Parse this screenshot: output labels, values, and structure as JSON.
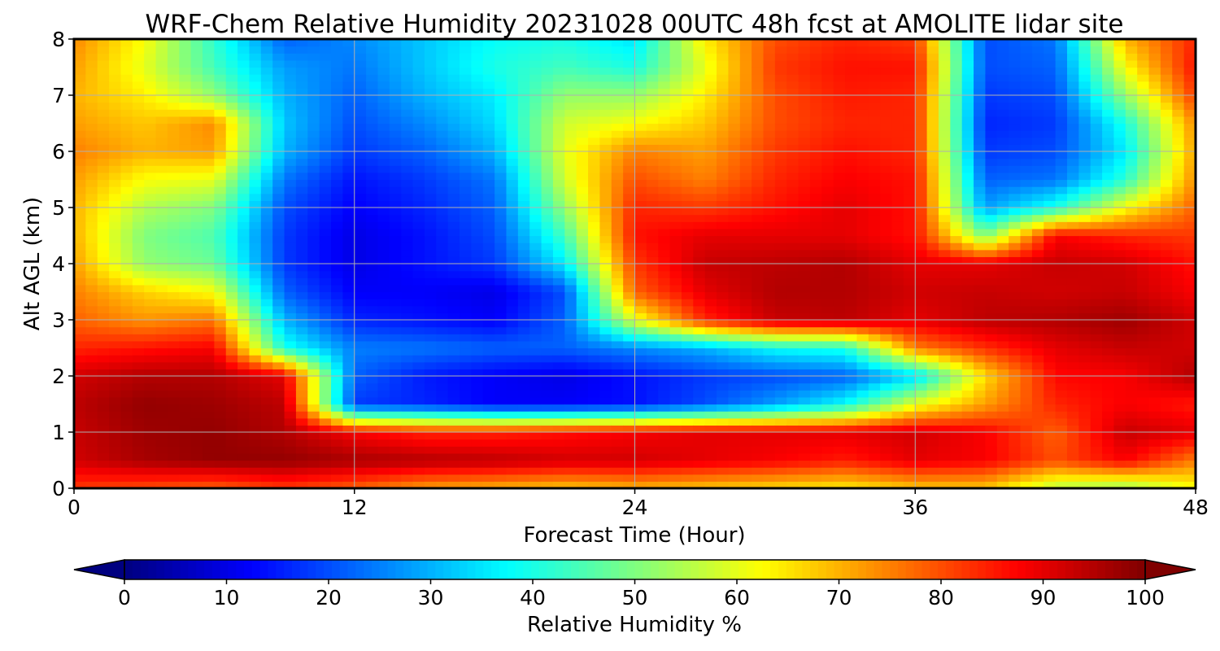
{
  "chart_data": {
    "type": "heatmap",
    "title": "WRF-Chem Relative Humidity 20231028 00UTC 48h fcst at AMOLITE lidar site",
    "xlabel": "Forecast Time (Hour)",
    "ylabel": "Alt AGL (km)",
    "xlim": [
      0,
      48
    ],
    "ylim": [
      0,
      8
    ],
    "xticks": [
      0,
      12,
      24,
      36,
      48
    ],
    "yticks": [
      0,
      1,
      2,
      3,
      4,
      5,
      6,
      7,
      8
    ],
    "grid": true,
    "colormap": "jet",
    "colorbar": {
      "label": "Relative Humidity %",
      "orientation": "horizontal",
      "location": "bottom",
      "vmin": 0,
      "vmax": 100,
      "ticks": [
        0,
        10,
        20,
        30,
        40,
        50,
        60,
        70,
        80,
        90,
        100
      ],
      "extend": "both"
    },
    "x": [
      0,
      3,
      6,
      9,
      12,
      15,
      18,
      21,
      24,
      27,
      30,
      33,
      36,
      39,
      42,
      45,
      48
    ],
    "y": [
      0,
      0.5,
      1,
      1.5,
      2,
      2.5,
      3,
      3.5,
      4,
      4.5,
      5,
      5.5,
      6,
      6.5,
      7,
      7.5,
      8
    ],
    "z": [
      [
        82,
        80,
        78,
        82,
        78,
        72,
        70,
        68,
        70,
        68,
        66,
        64,
        68,
        68,
        55,
        52,
        62
      ],
      [
        92,
        96,
        98,
        98,
        96,
        95,
        94,
        92,
        92,
        90,
        88,
        85,
        90,
        88,
        80,
        88,
        75
      ],
      [
        93,
        97,
        98,
        95,
        88,
        84,
        84,
        86,
        88,
        90,
        90,
        90,
        92,
        88,
        78,
        93,
        90
      ],
      [
        94,
        98,
        97,
        94,
        18,
        16,
        12,
        12,
        14,
        20,
        28,
        38,
        60,
        72,
        84,
        88,
        85
      ],
      [
        92,
        95,
        95,
        90,
        22,
        15,
        12,
        10,
        14,
        18,
        20,
        22,
        34,
        66,
        87,
        88,
        95
      ],
      [
        84,
        86,
        88,
        40,
        25,
        24,
        22,
        22,
        26,
        30,
        38,
        40,
        75,
        83,
        90,
        93,
        92
      ],
      [
        78,
        73,
        76,
        30,
        16,
        14,
        12,
        22,
        60,
        84,
        93,
        94,
        90,
        94,
        95,
        97,
        92
      ],
      [
        75,
        67,
        62,
        22,
        12,
        12,
        10,
        20,
        78,
        90,
        95,
        95,
        92,
        93,
        92,
        93,
        88
      ],
      [
        72,
        52,
        48,
        18,
        10,
        14,
        18,
        36,
        82,
        93,
        94,
        95,
        90,
        90,
        93,
        92,
        86
      ],
      [
        70,
        50,
        45,
        18,
        10,
        14,
        20,
        44,
        86,
        90,
        90,
        90,
        86,
        50,
        88,
        84,
        82
      ],
      [
        70,
        55,
        50,
        20,
        12,
        16,
        22,
        52,
        84,
        82,
        86,
        90,
        86,
        28,
        40,
        62,
        78
      ],
      [
        72,
        62,
        60,
        24,
        14,
        18,
        24,
        58,
        80,
        75,
        84,
        88,
        86,
        22,
        24,
        42,
        74
      ],
      [
        75,
        70,
        72,
        30,
        18,
        22,
        30,
        60,
        75,
        72,
        82,
        86,
        84,
        18,
        20,
        36,
        72
      ],
      [
        72,
        68,
        74,
        32,
        20,
        26,
        34,
        58,
        62,
        68,
        80,
        84,
        84,
        16,
        18,
        40,
        74
      ],
      [
        70,
        64,
        52,
        30,
        22,
        30,
        36,
        52,
        52,
        64,
        80,
        85,
        84,
        18,
        20,
        52,
        82
      ],
      [
        72,
        60,
        44,
        28,
        24,
        32,
        40,
        44,
        40,
        60,
        82,
        86,
        86,
        20,
        22,
        62,
        86
      ],
      [
        74,
        62,
        42,
        22,
        26,
        32,
        38,
        40,
        35,
        64,
        80,
        84,
        82,
        20,
        24,
        70,
        84
      ]
    ]
  }
}
